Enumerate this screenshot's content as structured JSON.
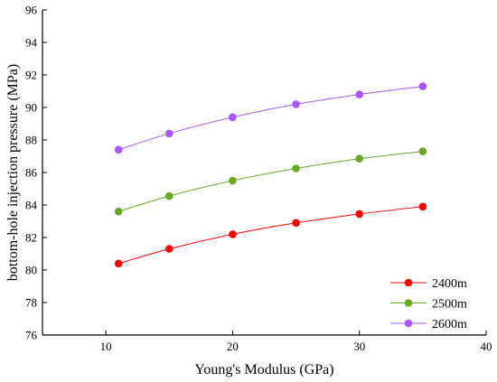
{
  "chart_data": {
    "type": "line",
    "xlabel": "Young's Modulus (GPa)",
    "ylabel": "bottom-hole injection pressure (MPa)",
    "xlim": [
      5,
      40
    ],
    "ylim": [
      76,
      96
    ],
    "xticks": [
      "10",
      "20",
      "30",
      "40"
    ],
    "yticks": [
      "76",
      "78",
      "80",
      "82",
      "84",
      "86",
      "88",
      "90",
      "92",
      "94",
      "96"
    ],
    "x": [
      11,
      15,
      20,
      25,
      30,
      35
    ],
    "series": [
      {
        "name": "2400m",
        "color": "#ff0000",
        "values": [
          80.4,
          81.3,
          82.2,
          82.9,
          83.45,
          83.9
        ]
      },
      {
        "name": "2500m",
        "color": "#66aa22",
        "values": [
          83.6,
          84.55,
          85.5,
          86.25,
          86.85,
          87.3
        ]
      },
      {
        "name": "2600m",
        "color": "#aa55ff",
        "values": [
          87.4,
          88.4,
          89.4,
          90.2,
          90.8,
          91.3
        ]
      }
    ],
    "grid": false,
    "legend_position": "bottom-right"
  }
}
